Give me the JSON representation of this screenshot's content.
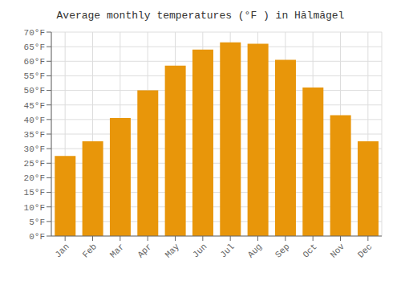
{
  "chart_data": {
    "type": "bar",
    "title": "Average monthly temperatures (°F ) in Hălmăgel",
    "categories": [
      "Jan",
      "Feb",
      "Mar",
      "Apr",
      "May",
      "Jun",
      "Jul",
      "Aug",
      "Sep",
      "Oct",
      "Nov",
      "Dec"
    ],
    "values": [
      27.5,
      32.5,
      40.5,
      50.0,
      58.5,
      64.0,
      66.5,
      66.0,
      60.5,
      51.0,
      41.5,
      32.5
    ],
    "color": "#E8960A",
    "ylim": [
      0,
      70
    ],
    "yticks": [
      {
        "value": 0,
        "label": "0°F"
      },
      {
        "value": 5,
        "label": "5°F"
      },
      {
        "value": 10,
        "label": "10°F"
      },
      {
        "value": 15,
        "label": "15°F"
      },
      {
        "value": 20,
        "label": "20°F"
      },
      {
        "value": 25,
        "label": "25°F"
      },
      {
        "value": 30,
        "label": "30°F"
      },
      {
        "value": 35,
        "label": "35°F"
      },
      {
        "value": 40,
        "label": "40°F"
      },
      {
        "value": 45,
        "label": "45°F"
      },
      {
        "value": 50,
        "label": "50°F"
      },
      {
        "value": 55,
        "label": "55°F"
      },
      {
        "value": 60,
        "label": "60°F"
      },
      {
        "value": 65,
        "label": "65°F"
      },
      {
        "value": 70,
        "label": "70°F"
      }
    ],
    "grid": true
  }
}
